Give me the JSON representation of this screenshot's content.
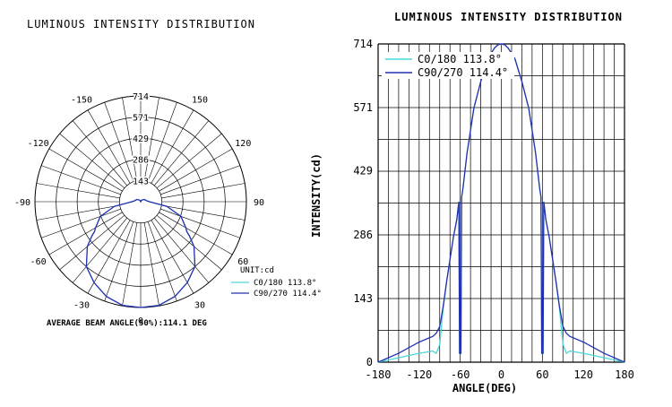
{
  "polar": {
    "title": "LUMINOUS INTENSITY DISTRIBUTION",
    "radial_ticks": [
      "143",
      "286",
      "429",
      "571",
      "714"
    ],
    "angle_labels": [
      "0",
      "30",
      "60",
      "90",
      "120",
      "150",
      "-150",
      "-120",
      "-90",
      "-60",
      "-30"
    ],
    "unit": "UNIT:cd",
    "legend": [
      "C0/180 113.8°",
      "C90/270 114.4°"
    ],
    "beam_angle": "AVERAGE BEAM ANGLE(50%):114.1 DEG"
  },
  "cartesian": {
    "title": "LUMINOUS INTENSITY DISTRIBUTION",
    "ylabel": "INTENSITY(cd)",
    "xlabel": "ANGLE(DEG)",
    "yticks": [
      "0",
      "143",
      "286",
      "429",
      "571",
      "714"
    ],
    "xticks": [
      "-180",
      "-120",
      "-60",
      "0",
      "60",
      "120",
      "180"
    ],
    "legend": [
      "C0/180 113.8°",
      "C90/270 114.4°"
    ]
  },
  "colors": {
    "c0": "#4dd8d8",
    "c90": "#2330b0",
    "grid": "#000000"
  },
  "chart_data": [
    {
      "type": "line",
      "subtype": "polar",
      "title": "LUMINOUS INTENSITY DISTRIBUTION",
      "rlim": [
        0,
        714
      ],
      "theta_range": [
        -180,
        180
      ],
      "series": [
        {
          "name": "C0/180 113.8°",
          "x": [
            -180,
            -150,
            -120,
            -100,
            -90,
            -80,
            -70,
            -60,
            -57,
            -55,
            -50,
            -40,
            -30,
            -20,
            -10,
            0,
            10,
            20,
            30,
            40,
            50,
            55,
            57,
            60,
            70,
            80,
            90,
            100,
            120,
            150,
            180
          ],
          "y": [
            0,
            12,
            30,
            40,
            55,
            180,
            290,
            350,
            370,
            400,
            470,
            570,
            630,
            680,
            710,
            714,
            710,
            680,
            630,
            570,
            470,
            400,
            370,
            350,
            290,
            180,
            55,
            40,
            30,
            12,
            0
          ]
        },
        {
          "name": "C90/270 114.4°",
          "x": [
            -180,
            -150,
            -120,
            -100,
            -90,
            -80,
            -70,
            -60,
            -57,
            -55,
            -50,
            -40,
            -30,
            -20,
            -10,
            0,
            10,
            20,
            30,
            40,
            50,
            55,
            57,
            60,
            70,
            80,
            90,
            100,
            120,
            150,
            180
          ],
          "y": [
            0,
            12,
            30,
            40,
            60,
            180,
            290,
            352,
            372,
            402,
            470,
            570,
            630,
            680,
            710,
            714,
            710,
            680,
            630,
            570,
            470,
            402,
            372,
            352,
            290,
            180,
            60,
            40,
            30,
            12,
            0
          ]
        }
      ]
    },
    {
      "type": "line",
      "title": "LUMINOUS INTENSITY DISTRIBUTION",
      "xlabel": "ANGLE(DEG)",
      "ylabel": "INTENSITY(cd)",
      "xlim": [
        -180,
        180
      ],
      "ylim": [
        0,
        714
      ],
      "grid": true,
      "legend_position": "top-left",
      "series": [
        {
          "name": "C0/180 113.8°",
          "x": [
            -180,
            -150,
            -120,
            -100,
            -95,
            -90,
            -85,
            -80,
            -75,
            -70,
            -65,
            -62,
            -61,
            -60,
            -59,
            -58,
            -56,
            -50,
            -40,
            -30,
            -20,
            -10,
            -5,
            0,
            5,
            10,
            20,
            30,
            40,
            50,
            56,
            58,
            59,
            60,
            61,
            62,
            65,
            70,
            75,
            80,
            85,
            90,
            95,
            100,
            120,
            150,
            180
          ],
          "y": [
            0,
            10,
            20,
            25,
            20,
            40,
            120,
            180,
            230,
            280,
            320,
            360,
            20,
            20,
            20,
            370,
            390,
            470,
            570,
            630,
            680,
            705,
            712,
            714,
            712,
            705,
            680,
            630,
            570,
            470,
            390,
            370,
            20,
            20,
            20,
            360,
            320,
            280,
            230,
            180,
            120,
            40,
            20,
            25,
            20,
            10,
            0
          ]
        },
        {
          "name": "C90/270 114.4°",
          "x": [
            -180,
            -150,
            -120,
            -100,
            -95,
            -90,
            -85,
            -80,
            -75,
            -70,
            -65,
            -62,
            -61,
            -60,
            -59,
            -58,
            -56,
            -50,
            -40,
            -30,
            -20,
            -10,
            -5,
            0,
            5,
            10,
            20,
            30,
            40,
            50,
            56,
            58,
            59,
            60,
            61,
            62,
            65,
            70,
            75,
            80,
            85,
            90,
            95,
            100,
            120,
            150,
            180
          ],
          "y": [
            0,
            20,
            45,
            58,
            65,
            80,
            125,
            180,
            230,
            280,
            320,
            360,
            20,
            20,
            20,
            370,
            390,
            470,
            570,
            630,
            680,
            705,
            712,
            714,
            712,
            705,
            680,
            630,
            570,
            470,
            390,
            370,
            20,
            20,
            20,
            360,
            320,
            280,
            230,
            180,
            125,
            80,
            65,
            58,
            45,
            20,
            0
          ]
        }
      ]
    }
  ]
}
